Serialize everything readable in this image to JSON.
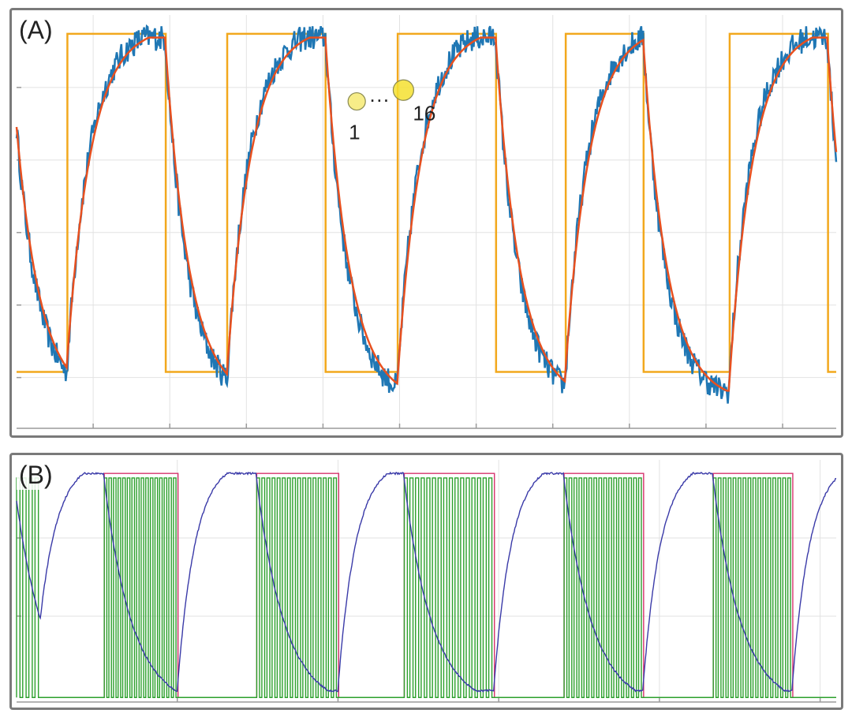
{
  "chart_data": [
    {
      "panel_label": "(A)",
      "type": "line",
      "grid": true,
      "xlim": [
        0,
        1
      ],
      "ylim": [
        -0.05,
        1.05
      ],
      "cycles": 5,
      "colors": {
        "square": "#f2a81d",
        "noisy": "#1f77b4",
        "filtered": "#e8501f",
        "grid": "#e2e2e2",
        "axis": "#9a9a9a"
      },
      "series": [
        {
          "kind": "square",
          "low": 0.1,
          "high": 1.0,
          "start": 0.0,
          "edges": [
            0.062,
            0.182,
            0.257,
            0.377,
            0.465,
            0.585,
            0.67,
            0.765,
            0.87,
            0.99
          ]
        },
        {
          "kind": "noisy",
          "values_at_edges": [
            0.98,
            0.07,
            0.98,
            0.06,
            1.0,
            0.06,
            1.0,
            0.08,
            1.0,
            0.07
          ]
        },
        {
          "kind": "filtered",
          "values_at_edges": [
            0.95,
            0.1,
            0.95,
            0.1,
            0.98,
            0.1,
            0.98,
            0.1,
            0.97,
            0.1
          ]
        }
      ],
      "annotations": [
        {
          "label": "1",
          "x": 0.415,
          "y": 0.82
        },
        {
          "label": "16",
          "x": 0.472,
          "y": 0.85
        }
      ],
      "ellipsis": "···"
    },
    {
      "panel_label": "(B)",
      "type": "line",
      "grid": true,
      "xlim": [
        0,
        1
      ],
      "ylim": [
        -0.02,
        1.05
      ],
      "colors": {
        "pwm": "#2ca02c",
        "envelope": "#d6336c",
        "response": "#3a3aa8",
        "grid": "#e2e2e2",
        "axis": "#9a9a9a"
      },
      "series": [
        {
          "kind": "pwm_bursts",
          "pulses_per_burst": 16,
          "bursts": [
            [
              0.0,
              0.03
            ],
            [
              0.107,
              0.197
            ],
            [
              0.293,
              0.393
            ],
            [
              0.473,
              0.583
            ],
            [
              0.668,
              0.765
            ],
            [
              0.85,
              0.947
            ]
          ]
        },
        {
          "kind": "envelope",
          "windows": [
            [
              0.107,
              0.197
            ],
            [
              0.293,
              0.393
            ],
            [
              0.473,
              0.583
            ],
            [
              0.668,
              0.765
            ],
            [
              0.85,
              0.947
            ]
          ]
        },
        {
          "kind": "response",
          "peaks": [
            0.96,
            0.97,
            0.97,
            0.96,
            1.0
          ],
          "troughs": [
            0.05,
            0.04,
            0.05,
            0.05,
            0.03
          ]
        }
      ]
    }
  ]
}
